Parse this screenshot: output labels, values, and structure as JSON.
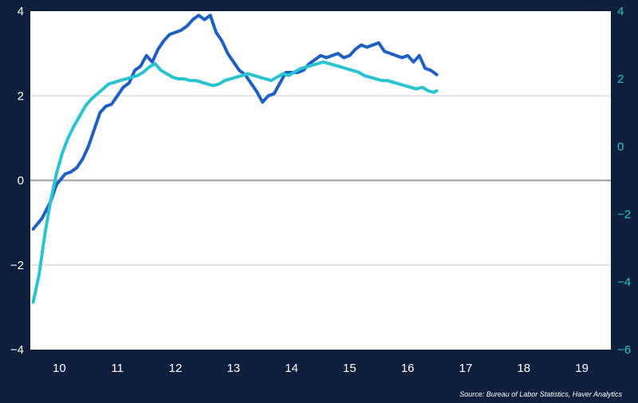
{
  "chart_data": {
    "type": "line",
    "title": "",
    "xlabel": "",
    "ylabel": "",
    "source": "Source: Bureau of Labor Statistics, Haver Analytics",
    "xlim": [
      9.5,
      19.5
    ],
    "x_ticks": [
      10,
      11,
      12,
      13,
      14,
      15,
      16,
      17,
      18,
      19
    ],
    "y_left": {
      "lim": [
        -4,
        4
      ],
      "ticks": [
        -4,
        -2,
        0,
        2,
        4
      ],
      "tick_labels": [
        "−4",
        "−2",
        "0",
        "2",
        "4"
      ],
      "color": "#ffffff"
    },
    "y_right": {
      "lim": [
        -6,
        4
      ],
      "ticks": [
        -6,
        -4,
        -2,
        0,
        2,
        4
      ],
      "tick_labels": [
        "−6",
        "−4",
        "−2",
        "0",
        "2",
        "4"
      ],
      "color": "#29c4d0"
    },
    "grid": "horizontal",
    "zero_line": true,
    "series": [
      {
        "axis": "left",
        "color": "#1f5fc4",
        "x": [
          9.55,
          9.7,
          9.85,
          9.95,
          10.1,
          10.2,
          10.3,
          10.4,
          10.5,
          10.6,
          10.7,
          10.8,
          10.9,
          11.0,
          11.1,
          11.2,
          11.3,
          11.4,
          11.5,
          11.6,
          11.7,
          11.8,
          11.9,
          12.0,
          12.1,
          12.2,
          12.3,
          12.4,
          12.5,
          12.6,
          12.7,
          12.8,
          12.9,
          13.0,
          13.1,
          13.2,
          13.3,
          13.4,
          13.5,
          13.6,
          13.7,
          13.8,
          13.9,
          14.0,
          14.1,
          14.2,
          14.3,
          14.4,
          14.5,
          14.6,
          14.7,
          14.8,
          14.9,
          15.0,
          15.1,
          15.2,
          15.3,
          15.4,
          15.5,
          15.6,
          15.7,
          15.8,
          15.9,
          16.0,
          16.1,
          16.2,
          16.3,
          16.4,
          16.5
        ],
        "y": [
          -1.15,
          -0.9,
          -0.5,
          -0.1,
          0.15,
          0.2,
          0.3,
          0.5,
          0.8,
          1.2,
          1.6,
          1.75,
          1.8,
          2.0,
          2.2,
          2.3,
          2.6,
          2.7,
          2.95,
          2.8,
          3.1,
          3.3,
          3.45,
          3.5,
          3.55,
          3.65,
          3.8,
          3.9,
          3.8,
          3.9,
          3.5,
          3.3,
          3.0,
          2.8,
          2.6,
          2.5,
          2.3,
          2.1,
          1.85,
          2.0,
          2.05,
          2.3,
          2.55,
          2.55,
          2.55,
          2.6,
          2.75,
          2.85,
          2.95,
          2.9,
          2.95,
          3.0,
          2.9,
          2.95,
          3.1,
          3.2,
          3.15,
          3.2,
          3.25,
          3.05,
          3.0,
          2.95,
          2.9,
          2.95,
          2.8,
          2.95,
          2.65,
          2.6,
          2.5
        ]
      },
      {
        "axis": "right",
        "color": "#29c4d0",
        "x": [
          9.55,
          9.65,
          9.75,
          9.85,
          9.95,
          10.05,
          10.15,
          10.25,
          10.35,
          10.45,
          10.55,
          10.65,
          10.75,
          10.85,
          10.95,
          11.05,
          11.15,
          11.25,
          11.35,
          11.45,
          11.55,
          11.65,
          11.75,
          11.85,
          11.95,
          12.05,
          12.15,
          12.25,
          12.35,
          12.45,
          12.55,
          12.65,
          12.75,
          12.85,
          12.95,
          13.05,
          13.15,
          13.25,
          13.35,
          13.45,
          13.55,
          13.65,
          13.75,
          13.85,
          13.95,
          14.05,
          14.15,
          14.25,
          14.35,
          14.45,
          14.55,
          14.65,
          14.75,
          14.85,
          14.95,
          15.05,
          15.15,
          15.25,
          15.35,
          15.45,
          15.55,
          15.65,
          15.75,
          15.85,
          15.95,
          16.05,
          16.15,
          16.25,
          16.35,
          16.45,
          16.5
        ],
        "y": [
          -4.6,
          -3.8,
          -2.6,
          -1.6,
          -0.8,
          -0.2,
          0.25,
          0.6,
          0.9,
          1.2,
          1.4,
          1.55,
          1.7,
          1.85,
          1.9,
          1.95,
          2.0,
          2.05,
          2.1,
          2.2,
          2.35,
          2.45,
          2.25,
          2.15,
          2.05,
          2.0,
          2.0,
          1.95,
          1.95,
          1.9,
          1.85,
          1.8,
          1.85,
          1.95,
          2.0,
          2.05,
          2.1,
          2.15,
          2.1,
          2.05,
          2.0,
          1.95,
          2.05,
          2.15,
          2.1,
          2.2,
          2.3,
          2.35,
          2.4,
          2.45,
          2.5,
          2.45,
          2.4,
          2.35,
          2.3,
          2.25,
          2.2,
          2.1,
          2.05,
          2.0,
          1.95,
          1.95,
          1.9,
          1.85,
          1.8,
          1.75,
          1.7,
          1.75,
          1.65,
          1.6,
          1.65
        ]
      }
    ]
  }
}
